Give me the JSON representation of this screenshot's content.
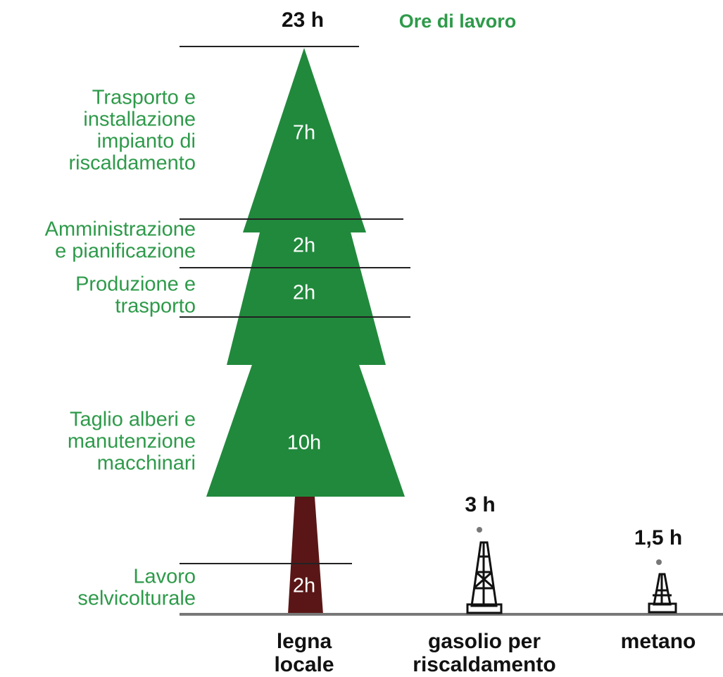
{
  "header": {
    "total": "23 h",
    "title": "Ore di lavoro"
  },
  "tree": {
    "segments": [
      {
        "lines": [
          "Trasporto e",
          "installazione",
          "impianto di",
          "riscaldamento"
        ],
        "hours": "7h"
      },
      {
        "lines": [
          "Amministrazione",
          "e pianificazione"
        ],
        "hours": "2h"
      },
      {
        "lines": [
          "Produzione e",
          "trasporto"
        ],
        "hours": "2h"
      },
      {
        "lines": [
          "Taglio alberi e",
          "manutenzione",
          "macchinari"
        ],
        "hours": "10h"
      },
      {
        "lines": [
          "Lavoro",
          "selvicolturale"
        ],
        "hours": "2h"
      }
    ]
  },
  "others": [
    {
      "hours": "3 h"
    },
    {
      "hours": "1,5 h"
    }
  ],
  "categories": [
    {
      "lines": [
        "legna",
        "locale"
      ]
    },
    {
      "lines": [
        "gasolio per",
        "riscaldamento"
      ]
    },
    {
      "lines": [
        "metano"
      ]
    }
  ]
}
